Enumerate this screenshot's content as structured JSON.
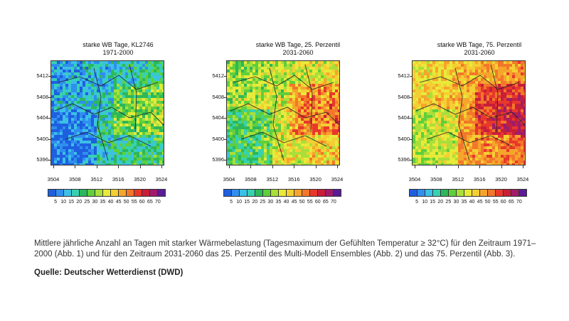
{
  "panels": [
    {
      "id": "p1",
      "title_line1": "starke WB Tage, KL2746",
      "title_line2": "1971-2000",
      "palette": "cool"
    },
    {
      "id": "p2",
      "title_line1": "starke WB Tage, 25. Perzentil",
      "title_line2": "2031-2060",
      "palette": "mid"
    },
    {
      "id": "p3",
      "title_line1": "starke WB Tage, 75. Perzentil",
      "title_line2": "2031-2060",
      "palette": "warm"
    }
  ],
  "y_ticks": [
    "5412",
    "5408",
    "5404",
    "5400",
    "5396"
  ],
  "x_ticks": [
    "3504",
    "3508",
    "3512",
    "3516",
    "3520",
    "3524"
  ],
  "colorbar": {
    "labels": [
      "5",
      "10",
      "15",
      "20",
      "25",
      "30",
      "35",
      "40",
      "45",
      "50",
      "55",
      "60",
      "65",
      "70"
    ],
    "colors": [
      "#1e5fe0",
      "#2f8fee",
      "#3cc0e6",
      "#36d2b0",
      "#2db85a",
      "#5fcf3c",
      "#a9df3a",
      "#e8ea3a",
      "#f4cf33",
      "#f6a52c",
      "#f2772a",
      "#e8382a",
      "#c81e3a",
      "#a01c6a",
      "#5a1c96"
    ]
  },
  "caption": "Mittlere jährliche Anzahl an Tagen mit starker Wärmebelastung (Tagesmaximum der Gefühlten Temperatur ≥ 32°C) für den Zeitraum 1971–2000 (Abb. 1) und für den Zeitraum 2031-2060 das 25. Perzentil des Multi-Modell Ensembles (Abb. 2) und das 75. Perzentil (Abb. 3).",
  "source": "Quelle: Deutscher Wetterdienst (DWD)"
}
